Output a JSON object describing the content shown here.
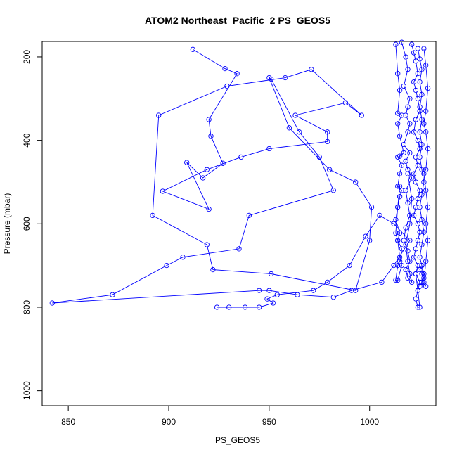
{
  "chart_data": {
    "type": "line",
    "title": "ATOM2 Northeast_Pacific_2 PS_GEOS5",
    "xlabel": "PS_GEOS5",
    "ylabel": "Pressure (mbar)",
    "xlim": [
      837,
      1033
    ],
    "ylim": [
      1036,
      163
    ],
    "y_reversed": true,
    "x_ticks": [
      850,
      900,
      950,
      1000
    ],
    "y_ticks": [
      200,
      400,
      600,
      800,
      1000
    ],
    "colors": {
      "series": "#0000ff",
      "axis": "#000000"
    },
    "markers": "open-circle",
    "series": [
      {
        "x": [
          912,
          928,
          934,
          920,
          921,
          927,
          917,
          909,
          920,
          897,
          919,
          936,
          950,
          979,
          979,
          963,
          988,
          996,
          971,
          958,
          929,
          895,
          892,
          919,
          922,
          951,
          993,
          1000,
          1001,
          993,
          980,
          960,
          950,
          951,
          965,
          975,
          982,
          940,
          935,
          907,
          899,
          872,
          842,
          945,
          950,
          964,
          982,
          991,
          1006,
          1012,
          1020,
          1012,
          1005,
          998,
          990,
          979,
          972,
          954,
          949,
          952,
          945,
          938,
          930,
          924
        ],
        "y": [
          182,
          228,
          240,
          350,
          390,
          455,
          490,
          453,
          565,
          522,
          470,
          440,
          420,
          403,
          380,
          340,
          310,
          340,
          230,
          250,
          270,
          340,
          580,
          650,
          710,
          720,
          760,
          640,
          560,
          500,
          470,
          370,
          250,
          253,
          380,
          440,
          520,
          580,
          660,
          680,
          700,
          770,
          790,
          760,
          760,
          770,
          776,
          760,
          740,
          700,
          640,
          600,
          580,
          630,
          700,
          740,
          760,
          770,
          780,
          790,
          800,
          800,
          800,
          800
        ]
      },
      {
        "x": [
          1013,
          1014,
          1015,
          1014,
          1016,
          1014,
          1015,
          1017,
          1015,
          1014,
          1016,
          1015,
          1014,
          1016,
          1015,
          1014,
          1013,
          1015,
          1014,
          1016,
          1015,
          1014,
          1013,
          1014,
          1016,
          1015,
          1014,
          1013,
          1014,
          1015
        ],
        "y": [
          170,
          240,
          280,
          335,
          340,
          360,
          390,
          430,
          438,
          440,
          460,
          480,
          510,
          520,
          535,
          560,
          590,
          622,
          640,
          660,
          690,
          700,
          735,
          735,
          700,
          680,
          640,
          622,
          560,
          510
        ]
      },
      {
        "x": [
          1016,
          1018,
          1019,
          1017,
          1020,
          1019,
          1018,
          1020,
          1019,
          1017,
          1020,
          1018,
          1019,
          1021,
          1018,
          1019,
          1020,
          1018,
          1017,
          1019,
          1020,
          1018,
          1019,
          1021,
          1020,
          1019,
          1018,
          1020,
          1021,
          1019
        ],
        "y": [
          165,
          200,
          230,
          270,
          300,
          320,
          340,
          360,
          380,
          410,
          430,
          450,
          470,
          490,
          520,
          550,
          580,
          610,
          640,
          665,
          690,
          710,
          730,
          740,
          720,
          690,
          650,
          600,
          540,
          480
        ]
      },
      {
        "x": [
          1021,
          1022,
          1023,
          1024,
          1022,
          1023,
          1024,
          1025,
          1023,
          1022,
          1024,
          1025,
          1023,
          1024,
          1022,
          1023,
          1025,
          1024,
          1023,
          1022,
          1024,
          1025,
          1024,
          1023,
          1022,
          1024,
          1023,
          1025,
          1024,
          1023,
          1024,
          1025,
          1024,
          1023
        ],
        "y": [
          170,
          190,
          210,
          240,
          260,
          280,
          300,
          330,
          350,
          380,
          400,
          420,
          440,
          460,
          480,
          500,
          520,
          540,
          560,
          580,
          600,
          620,
          640,
          660,
          680,
          700,
          720,
          740,
          760,
          780,
          800,
          800,
          760,
          720
        ]
      },
      {
        "x": [
          1024,
          1025,
          1026,
          1025,
          1026,
          1025,
          1026,
          1025,
          1026,
          1025,
          1026,
          1027,
          1026,
          1025,
          1026,
          1027,
          1026,
          1025,
          1026,
          1025,
          1026,
          1027,
          1026,
          1025,
          1026,
          1027,
          1026
        ],
        "y": [
          180,
          205,
          230,
          260,
          290,
          320,
          350,
          380,
          410,
          440,
          470,
          500,
          530,
          560,
          590,
          620,
          650,
          680,
          700,
          710,
          720,
          730,
          740,
          750,
          740,
          720,
          700
        ]
      },
      {
        "x": [
          1027,
          1028,
          1029,
          1028,
          1027,
          1028,
          1029,
          1028,
          1027,
          1028,
          1029,
          1028,
          1029,
          1028,
          1027,
          1028
        ],
        "y": [
          180,
          220,
          275,
          330,
          360,
          380,
          420,
          470,
          480,
          520,
          560,
          600,
          640,
          690,
          740,
          750
        ]
      }
    ]
  }
}
